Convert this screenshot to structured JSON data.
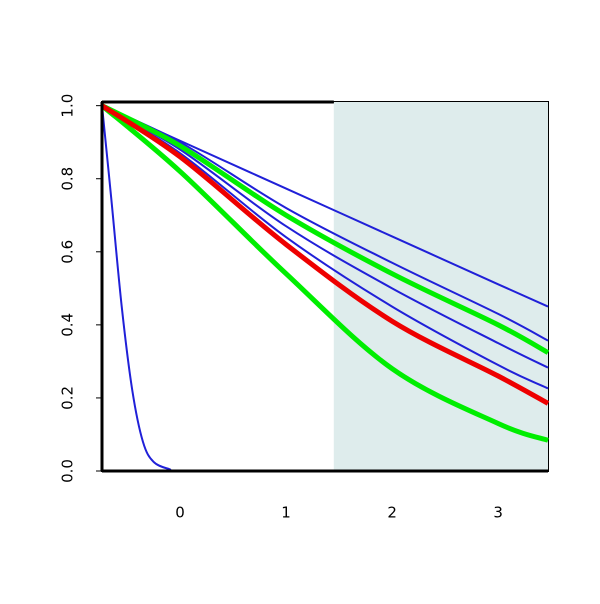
{
  "chart_data": {
    "type": "line",
    "xlim": [
      -0.736,
      3.47
    ],
    "ylim": [
      0,
      1.01
    ],
    "xticks": [
      0,
      1,
      2,
      3
    ],
    "yticks": [
      {
        "value": 0,
        "label": "0.0"
      },
      {
        "value": 0.2,
        "label": "0.2"
      },
      {
        "value": 0.4,
        "label": "0.4"
      },
      {
        "value": 0.6,
        "label": "0.6"
      },
      {
        "value": 0.8,
        "label": "0.8"
      },
      {
        "value": 1,
        "label": "1.0"
      }
    ],
    "shaded_x": [
      1.45,
      3.47
    ],
    "shade_color": "#deecec",
    "series": [
      {
        "color": "#2020d8",
        "width": 2,
        "x": [
          -0.736,
          0,
          1,
          2,
          3,
          3.47
        ],
        "values": [
          1,
          0.904,
          0.773,
          0.642,
          0.511,
          0.45
        ]
      },
      {
        "color": "#2020d8",
        "width": 2,
        "x": [
          -0.736,
          0,
          1,
          2,
          3,
          3.47
        ],
        "values": [
          1,
          0.9,
          0.72,
          0.57,
          0.43,
          0.357
        ]
      },
      {
        "color": "#2020d8",
        "width": 2,
        "x": [
          -0.736,
          0,
          1,
          2,
          3,
          3.47
        ],
        "values": [
          1,
          0.88,
          0.67,
          0.5,
          0.35,
          0.283
        ]
      },
      {
        "color": "#2020d8",
        "width": 2,
        "x": [
          -0.736,
          0,
          1,
          2,
          3,
          3.47
        ],
        "values": [
          1,
          0.87,
          0.64,
          0.45,
          0.29,
          0.226
        ]
      },
      {
        "color": "#00ee00",
        "width": 5,
        "x": [
          -0.736,
          0,
          1,
          2,
          3,
          3.47
        ],
        "values": [
          1,
          0.89,
          0.7,
          0.54,
          0.4,
          0.324
        ]
      },
      {
        "color": "#00ee00",
        "width": 5,
        "x": [
          -0.736,
          0,
          1,
          2,
          3,
          3.47
        ],
        "values": [
          1,
          0.82,
          0.54,
          0.28,
          0.13,
          0.084
        ]
      },
      {
        "color": "#ee0000",
        "width": 5,
        "x": [
          -0.736,
          0,
          1,
          2,
          3,
          3.47
        ],
        "values": [
          1,
          0.86,
          0.62,
          0.41,
          0.26,
          0.185
        ]
      },
      {
        "color": "#2020d8",
        "width": 2,
        "x": [
          -0.736,
          -0.65,
          -0.55,
          -0.45,
          -0.35,
          -0.25,
          -0.1,
          0,
          1,
          2,
          3,
          3.47
        ],
        "values": [
          1,
          0.75,
          0.45,
          0.22,
          0.08,
          0.025,
          0.005,
          0,
          0,
          0,
          0,
          0
        ]
      }
    ]
  }
}
